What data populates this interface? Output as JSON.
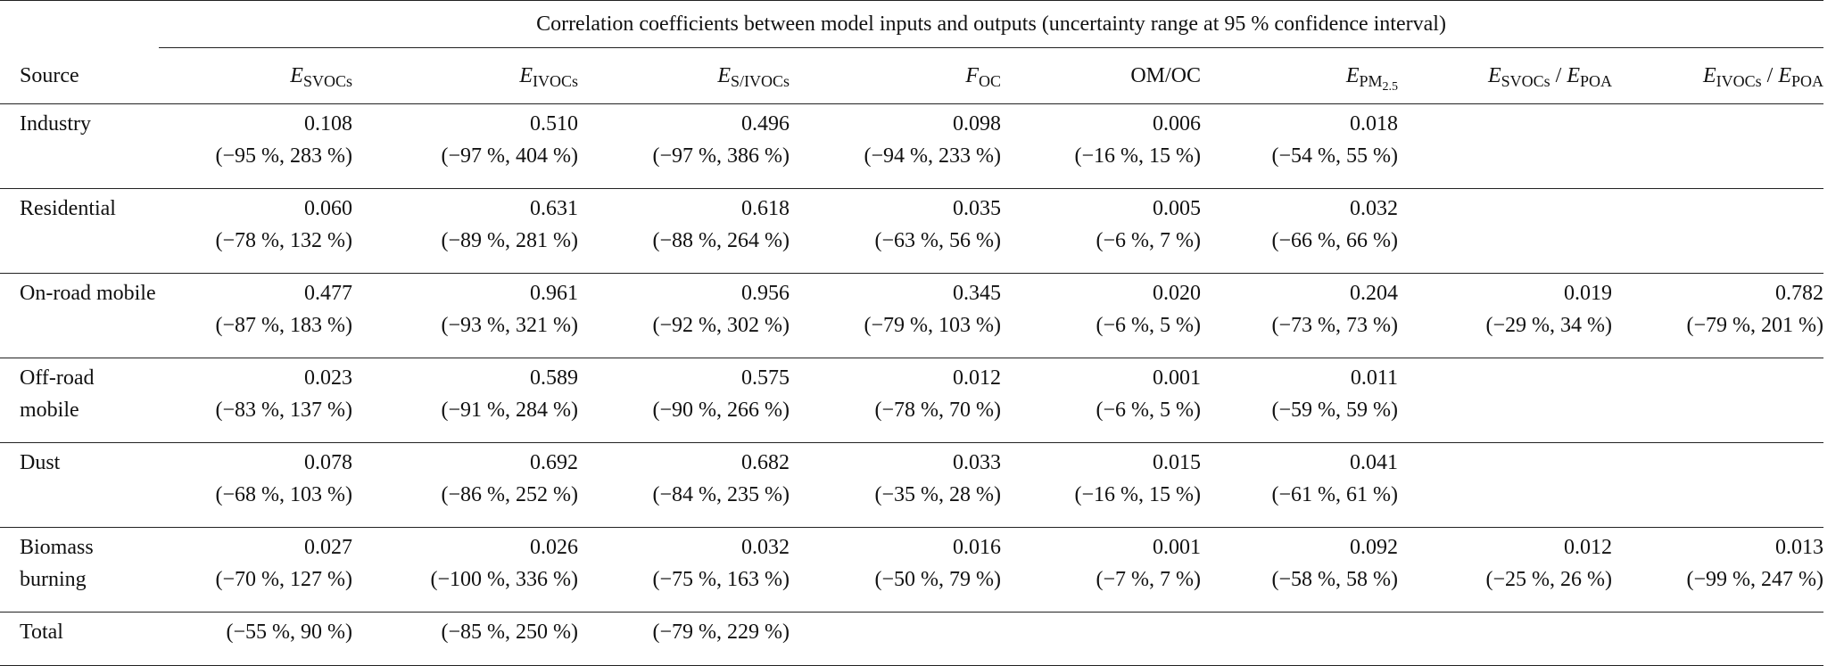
{
  "table": {
    "caption": "Correlation coefficients between model inputs and outputs (uncertainty range at 95 % confidence interval)",
    "header": [
      "Source",
      {
        "symbol": "E",
        "subscript": "SVOCs"
      },
      {
        "symbol": "E",
        "subscript": "IVOCs"
      },
      {
        "symbol": "E",
        "subscript": "S/IVOCs"
      },
      {
        "symbol": "F",
        "subscript": "OC"
      },
      "OM/OC",
      {
        "symbol": "E",
        "subscript": "PM",
        "subsubscript": "2.5"
      },
      {
        "parts": [
          {
            "symbol": "E",
            "subscript": "SVOCs"
          },
          " / ",
          {
            "symbol": "E",
            "subscript": "POA"
          }
        ]
      },
      {
        "parts": [
          {
            "symbol": "E",
            "subscript": "IVOCs"
          },
          " / ",
          {
            "symbol": "E",
            "subscript": "POA"
          }
        ]
      }
    ],
    "rows": [
      {
        "source": "Industry",
        "cells": [
          {
            "value": "0.108",
            "range": "(−95 %, 283 %)"
          },
          {
            "value": "0.510",
            "range": "(−97 %, 404 %)"
          },
          {
            "value": "0.496",
            "range": "(−97 %, 386 %)"
          },
          {
            "value": "0.098",
            "range": "(−94 %, 233 %)"
          },
          {
            "value": "0.006",
            "range": "(−16 %, 15 %)"
          },
          {
            "value": "0.018",
            "range": "(−54 %, 55 %)"
          },
          null,
          null
        ]
      },
      {
        "source": "Residential",
        "cells": [
          {
            "value": "0.060",
            "range": "(−78 %, 132 %)"
          },
          {
            "value": "0.631",
            "range": "(−89 %, 281 %)"
          },
          {
            "value": "0.618",
            "range": "(−88 %, 264 %)"
          },
          {
            "value": "0.035",
            "range": "(−63 %, 56 %)"
          },
          {
            "value": "0.005",
            "range": "(−6 %, 7 %)"
          },
          {
            "value": "0.032",
            "range": "(−66 %, 66 %)"
          },
          null,
          null
        ]
      },
      {
        "source": "On-road mobile",
        "cells": [
          {
            "value": "0.477",
            "range": "(−87 %, 183 %)"
          },
          {
            "value": "0.961",
            "range": "(−93 %, 321 %)"
          },
          {
            "value": "0.956",
            "range": "(−92 %, 302 %)"
          },
          {
            "value": "0.345",
            "range": "(−79 %, 103 %)"
          },
          {
            "value": "0.020",
            "range": "(−6 %, 5 %)"
          },
          {
            "value": "0.204",
            "range": "(−73 %, 73 %)"
          },
          {
            "value": "0.019",
            "range": "(−29 %, 34 %)"
          },
          {
            "value": "0.782",
            "range": "(−79 %, 201 %)"
          }
        ]
      },
      {
        "source": "Off-road mobile",
        "cells": [
          {
            "value": "0.023",
            "range": "(−83 %, 137 %)"
          },
          {
            "value": "0.589",
            "range": "(−91 %, 284 %)"
          },
          {
            "value": "0.575",
            "range": "(−90 %, 266 %)"
          },
          {
            "value": "0.012",
            "range": "(−78 %, 70 %)"
          },
          {
            "value": "0.001",
            "range": "(−6 %, 5 %)"
          },
          {
            "value": "0.011",
            "range": "(−59 %, 59 %)"
          },
          null,
          null
        ]
      },
      {
        "source": "Dust",
        "cells": [
          {
            "value": "0.078",
            "range": "(−68 %, 103 %)"
          },
          {
            "value": "0.692",
            "range": "(−86 %, 252 %)"
          },
          {
            "value": "0.682",
            "range": "(−84 %, 235 %)"
          },
          {
            "value": "0.033",
            "range": "(−35 %, 28 %)"
          },
          {
            "value": "0.015",
            "range": "(−16 %, 15 %)"
          },
          {
            "value": "0.041",
            "range": "(−61 %, 61 %)"
          },
          null,
          null
        ]
      },
      {
        "source": "Biomass burning",
        "cells": [
          {
            "value": "0.027",
            "range": "(−70 %, 127 %)"
          },
          {
            "value": "0.026",
            "range": "(−100 %, 336 %)"
          },
          {
            "value": "0.032",
            "range": "(−75 %, 163 %)"
          },
          {
            "value": "0.016",
            "range": "(−50 %, 79 %)"
          },
          {
            "value": "0.001",
            "range": "(−7 %, 7 %)"
          },
          {
            "value": "0.092",
            "range": "(−58 %, 58 %)"
          },
          {
            "value": "0.012",
            "range": "(−25 %, 26 %)"
          },
          {
            "value": "0.013",
            "range": "(−99 %, 247 %)"
          }
        ]
      },
      {
        "source": "Total",
        "cells": [
          {
            "range": "(−55 %, 90 %)"
          },
          {
            "range": "(−85 %, 250 %)"
          },
          {
            "range": "(−79 %, 229 %)"
          },
          null,
          null,
          null,
          null,
          null
        ]
      }
    ]
  }
}
